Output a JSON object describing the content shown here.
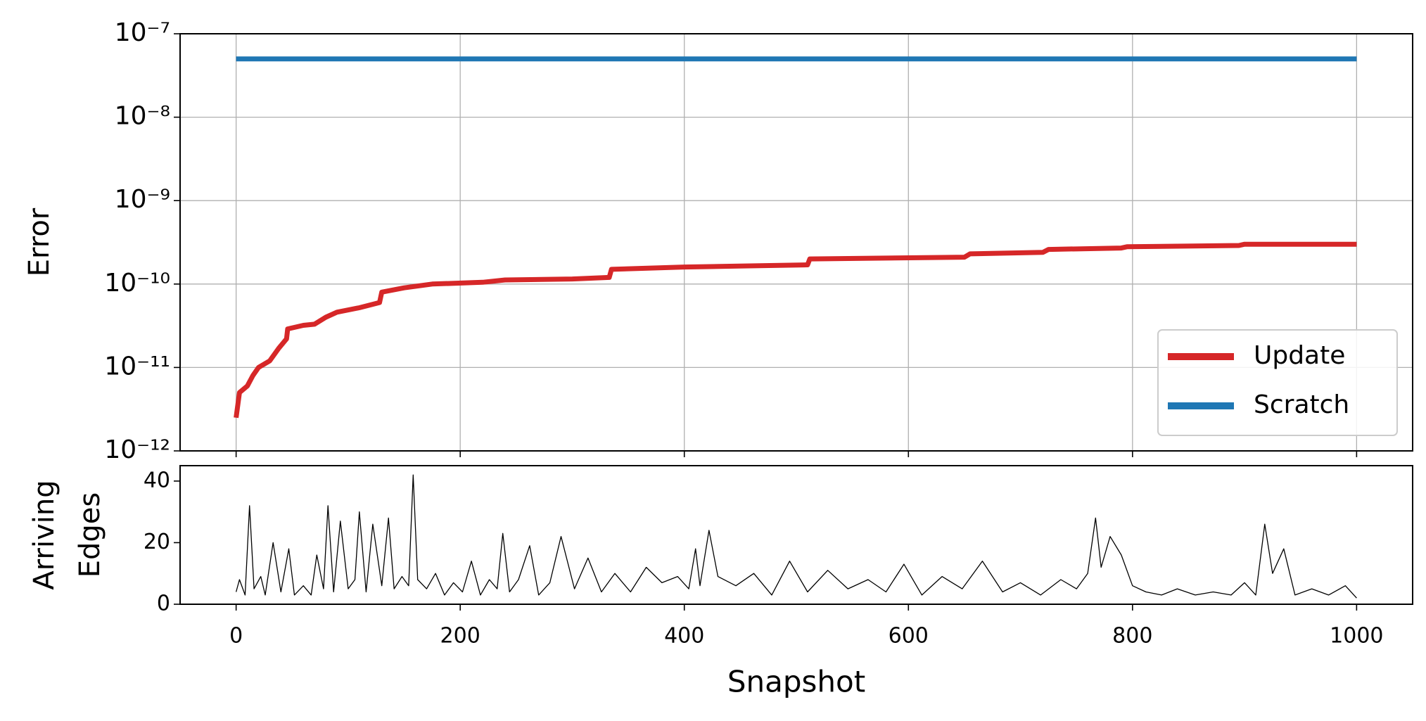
{
  "chart_data": [
    {
      "type": "line",
      "ylabel": "Error",
      "yscale": "log",
      "grid": true,
      "legend_loc": "lower right",
      "xlim": [
        -50,
        1050
      ],
      "xticks": [
        0,
        200,
        400,
        600,
        800,
        1000
      ],
      "ylim": [
        1e-12,
        1e-07
      ],
      "yticks": [
        {
          "value": 1e-12,
          "label": "10⁻¹²"
        },
        {
          "value": 1e-11,
          "label": "10⁻¹¹"
        },
        {
          "value": 1e-10,
          "label": "10⁻¹⁰"
        },
        {
          "value": 1e-09,
          "label": "10⁻⁹"
        },
        {
          "value": 1e-08,
          "label": "10⁻⁸"
        },
        {
          "value": 1e-07,
          "label": "10⁻⁷"
        }
      ],
      "series": [
        {
          "name": "Update",
          "color": "#d62728",
          "x": [
            0,
            3,
            10,
            15,
            20,
            30,
            38,
            45,
            46,
            60,
            70,
            80,
            90,
            110,
            128,
            130,
            150,
            175,
            220,
            240,
            300,
            333,
            335,
            400,
            510,
            512,
            650,
            655,
            720,
            725,
            790,
            795,
            895,
            900,
            1000
          ],
          "values": [
            2.5e-12,
            5e-12,
            6e-12,
            8e-12,
            1e-11,
            1.2e-11,
            1.7e-11,
            2.2e-11,
            2.9e-11,
            3.2e-11,
            3.3e-11,
            4e-11,
            4.6e-11,
            5.2e-11,
            6e-11,
            8e-11,
            9e-11,
            1e-10,
            1.05e-10,
            1.12e-10,
            1.15e-10,
            1.2e-10,
            1.5e-10,
            1.6e-10,
            1.7e-10,
            2e-10,
            2.1e-10,
            2.3e-10,
            2.4e-10,
            2.6e-10,
            2.7e-10,
            2.8e-10,
            2.9e-10,
            3e-10,
            3e-10
          ]
        },
        {
          "name": "Scratch",
          "color": "#1f77b4",
          "x": [
            0,
            1000
          ],
          "values": [
            5e-08,
            5e-08
          ]
        }
      ]
    },
    {
      "type": "line",
      "ylabel": [
        "Arriving",
        "Edges"
      ],
      "xlabel": "Snapshot",
      "grid": false,
      "xlim": [
        -50,
        1050
      ],
      "xticks": [
        0,
        200,
        400,
        600,
        800,
        1000
      ],
      "ylim": [
        0,
        45
      ],
      "yticks": [
        0,
        20,
        40
      ],
      "series": [
        {
          "color": "#000000",
          "x": [
            0,
            3,
            8,
            12,
            16,
            22,
            26,
            33,
            40,
            47,
            52,
            60,
            67,
            72,
            78,
            82,
            87,
            93,
            100,
            106,
            110,
            116,
            122,
            130,
            136,
            141,
            148,
            154,
            158,
            162,
            170,
            178,
            186,
            194,
            202,
            210,
            218,
            226,
            233,
            238,
            244,
            252,
            262,
            270,
            280,
            290,
            302,
            314,
            326,
            338,
            352,
            366,
            380,
            394,
            404,
            410,
            414,
            422,
            430,
            446,
            462,
            478,
            494,
            510,
            528,
            546,
            564,
            580,
            596,
            612,
            630,
            648,
            666,
            684,
            700,
            718,
            736,
            750,
            760,
            767,
            772,
            780,
            790,
            800,
            812,
            826,
            840,
            856,
            872,
            888,
            900,
            910,
            918,
            925,
            935,
            945,
            960,
            975,
            990,
            1000
          ],
          "values": [
            4,
            8,
            3,
            32,
            5,
            9,
            3,
            20,
            4,
            18,
            3,
            6,
            3,
            16,
            5,
            32,
            4,
            27,
            5,
            8,
            30,
            4,
            26,
            6,
            28,
            5,
            9,
            6,
            42,
            8,
            5,
            10,
            3,
            7,
            4,
            14,
            3,
            8,
            5,
            23,
            4,
            8,
            19,
            3,
            7,
            22,
            5,
            15,
            4,
            10,
            4,
            12,
            7,
            9,
            5,
            18,
            6,
            24,
            9,
            6,
            10,
            3,
            14,
            4,
            11,
            5,
            8,
            4,
            13,
            3,
            9,
            5,
            14,
            4,
            7,
            3,
            8,
            5,
            10,
            28,
            12,
            22,
            16,
            6,
            4,
            3,
            5,
            3,
            4,
            3,
            7,
            3,
            26,
            10,
            18,
            3,
            5,
            3,
            6,
            2
          ]
        }
      ]
    }
  ]
}
